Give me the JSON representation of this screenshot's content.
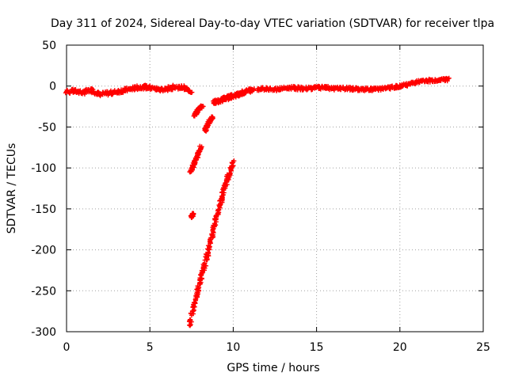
{
  "chart_data": {
    "type": "scatter",
    "title": "Day 311 of 2024, Sidereal Day-to-day VTEC variation (SDTVAR) for receiver tlpa",
    "xlabel": "GPS time / hours",
    "ylabel": "SDTVAR / TECUs",
    "xlim": [
      0,
      25
    ],
    "ylim": [
      -300,
      50
    ],
    "xticks": [
      0,
      5,
      10,
      15,
      20,
      25
    ],
    "yticks": [
      50,
      0,
      -50,
      -100,
      -150,
      -200,
      -250,
      -300
    ],
    "grid": true,
    "legend": "none",
    "colors": {
      "series": "#ff0000",
      "frame": "#000000",
      "grid": "#a0a0a0"
    },
    "marker": "plus",
    "segments": [
      {
        "name": "baseline-early",
        "x": [
          0.0,
          0.5,
          1.0,
          1.5,
          2.0,
          2.5,
          3.0,
          3.5,
          4.0,
          4.5,
          5.0,
          5.5,
          6.0,
          6.5,
          7.0,
          7.5
        ],
        "y": [
          -7,
          -6,
          -8,
          -5,
          -10,
          -9,
          -7,
          -5,
          -3,
          -1,
          -2,
          -4,
          -4,
          -1,
          -2,
          -6
        ],
        "spread": 5
      },
      {
        "name": "dip-fragment-1",
        "x": [
          7.45,
          7.6,
          7.75,
          7.9,
          8.05
        ],
        "y": [
          -105,
          -97,
          -90,
          -83,
          -74
        ],
        "spread": 2
      },
      {
        "name": "dip-fragment-2",
        "x": [
          7.5,
          7.6
        ],
        "y": [
          -160,
          -155
        ],
        "spread": 2
      },
      {
        "name": "dip-fragment-3",
        "x": [
          7.7,
          7.85,
          8.0,
          8.15
        ],
        "y": [
          -36,
          -30,
          -27,
          -24
        ],
        "spread": 2
      },
      {
        "name": "dip-fragment-4",
        "x": [
          8.3,
          8.45,
          8.6,
          8.75
        ],
        "y": [
          -55,
          -48,
          -42,
          -38
        ],
        "spread": 2
      },
      {
        "name": "steep-descent",
        "x": [
          7.4,
          7.6,
          7.8,
          8.0,
          8.2,
          8.4,
          8.6,
          8.8,
          9.0,
          9.2,
          9.4,
          9.6,
          9.8,
          10.0
        ],
        "y": [
          -290,
          -270,
          -255,
          -240,
          -225,
          -210,
          -193,
          -175,
          -160,
          -145,
          -130,
          -115,
          -105,
          -93
        ],
        "spread": 6
      },
      {
        "name": "recovery-ramp",
        "x": [
          8.8,
          9.1,
          9.4,
          9.7,
          10.0,
          10.3,
          10.6,
          10.9,
          11.2
        ],
        "y": [
          -20,
          -18,
          -16,
          -14,
          -12,
          -10,
          -8,
          -6,
          -4
        ],
        "spread": 5
      },
      {
        "name": "baseline-late",
        "x": [
          11.5,
          12.0,
          12.5,
          13.0,
          13.5,
          14.0,
          14.5,
          15.0,
          15.5,
          16.0,
          16.5,
          17.0,
          17.5,
          18.0,
          18.5,
          19.0,
          19.5,
          20.0,
          20.5,
          21.0,
          21.5,
          22.0,
          22.5,
          22.9
        ],
        "y": [
          -4,
          -3,
          -4,
          -3,
          -2,
          -3,
          -3,
          -2,
          -2,
          -3,
          -3,
          -3,
          -4,
          -4,
          -4,
          -3,
          -2,
          0,
          2,
          5,
          6,
          7,
          8,
          8
        ],
        "spread": 4
      }
    ]
  }
}
